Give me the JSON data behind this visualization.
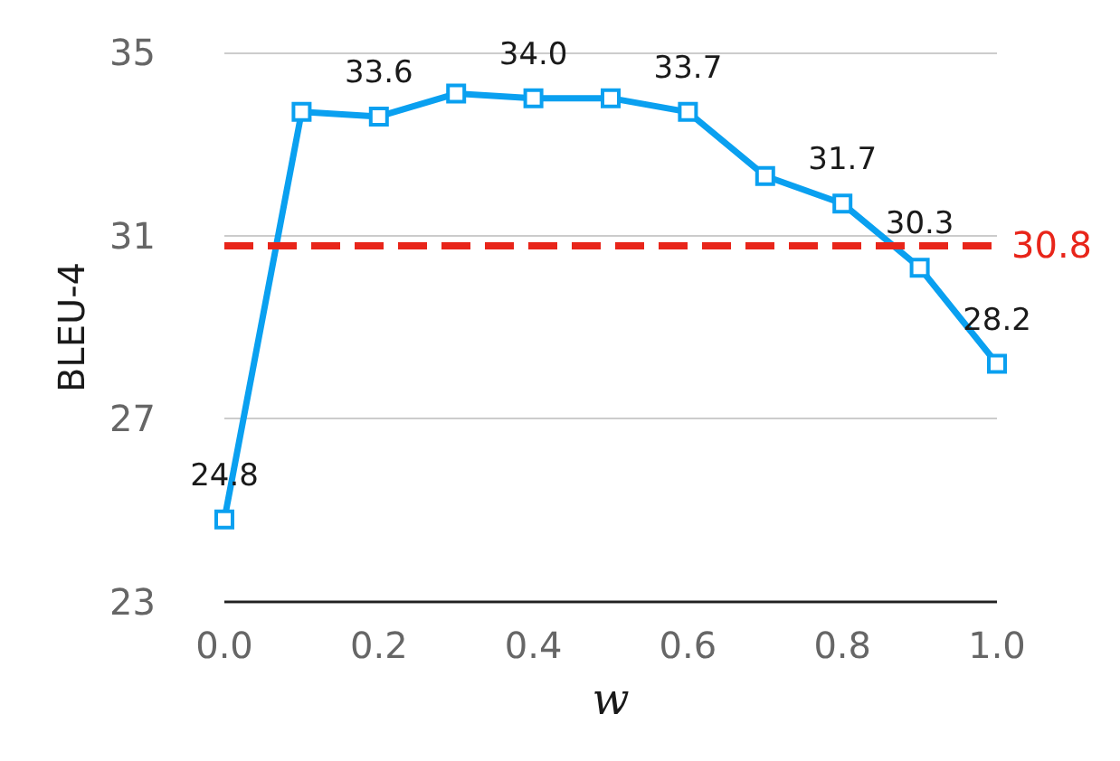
{
  "chart_data": {
    "type": "line",
    "xlabel": "w",
    "ylabel": "BLEU-4",
    "x": [
      0.0,
      0.1,
      0.2,
      0.3,
      0.4,
      0.5,
      0.6,
      0.7,
      0.8,
      0.9,
      1.0
    ],
    "series": [
      {
        "color": "#0aa0f0",
        "values": [
          24.8,
          33.7,
          33.6,
          34.1,
          34.0,
          34.0,
          33.7,
          32.3,
          31.7,
          30.3,
          28.2
        ],
        "value_labels": [
          "24.8",
          null,
          "33.6",
          null,
          "34.0",
          null,
          "33.7",
          null,
          "31.7",
          "30.3",
          "28.2"
        ]
      }
    ],
    "xlim": [
      0,
      1
    ],
    "xticks": [
      {
        "value": 0,
        "label": "0.0"
      },
      {
        "value": 0.2,
        "label": "0.2"
      },
      {
        "value": 0.4,
        "label": "0.4"
      },
      {
        "value": 0.6,
        "label": "0.6"
      },
      {
        "value": 0.8,
        "label": "0.8"
      },
      {
        "value": 1,
        "label": "1.0"
      }
    ],
    "ylim": [
      23,
      35
    ],
    "yticks": [
      23,
      27,
      31,
      35
    ],
    "ref_lines": [
      {
        "axis": "y",
        "value": 30.8,
        "label": "30.8",
        "color": "#e8251a",
        "line_style": "dashed"
      }
    ],
    "grid": "y",
    "marker": "square",
    "line_style": "solid"
  }
}
